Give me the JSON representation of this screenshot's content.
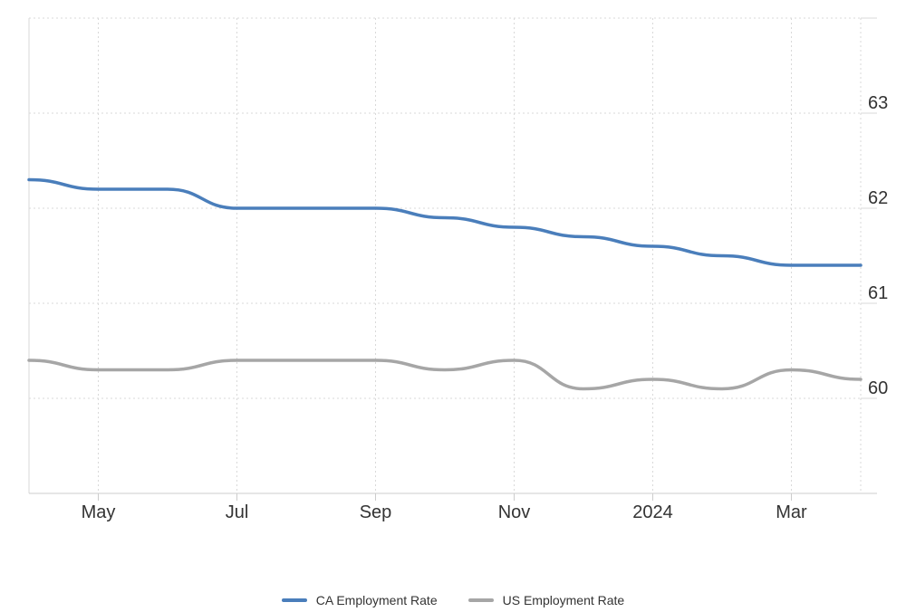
{
  "chart_data": {
    "type": "line",
    "x": [
      "2023-04",
      "2023-05",
      "2023-06",
      "2023-07",
      "2023-08",
      "2023-09",
      "2023-10",
      "2023-11",
      "2023-12",
      "2024-01",
      "2024-02",
      "2024-03",
      "2024-04"
    ],
    "x_tick_labels": [
      "May",
      "Jul",
      "Sep",
      "Nov",
      "2024",
      "Mar"
    ],
    "x_tick_dates": [
      "2023-05",
      "2023-07",
      "2023-09",
      "2023-11",
      "2024-01",
      "2024-03"
    ],
    "y_tick_labels": [
      "60",
      "61",
      "62",
      "63"
    ],
    "y_ticks": [
      60,
      61,
      62,
      63
    ],
    "ylim": [
      59.0,
      64.0
    ],
    "grid": true,
    "legend_position": "bottom",
    "title": "",
    "xlabel": "",
    "ylabel": "",
    "series": [
      {
        "name": "CA Employment Rate",
        "color": "#4a7ebb",
        "values": [
          62.3,
          62.2,
          62.2,
          62.0,
          62.0,
          62.0,
          61.9,
          61.8,
          61.7,
          61.6,
          61.5,
          61.4,
          61.4
        ]
      },
      {
        "name": "US Employment Rate",
        "color": "#a6a6a6",
        "values": [
          60.4,
          60.3,
          60.3,
          60.4,
          60.4,
          60.4,
          60.3,
          60.4,
          60.1,
          60.2,
          60.1,
          60.3,
          60.2
        ]
      }
    ]
  },
  "colors": {
    "grid": "#d9d9d9",
    "axis": "#cccccc",
    "text": "#333333"
  }
}
